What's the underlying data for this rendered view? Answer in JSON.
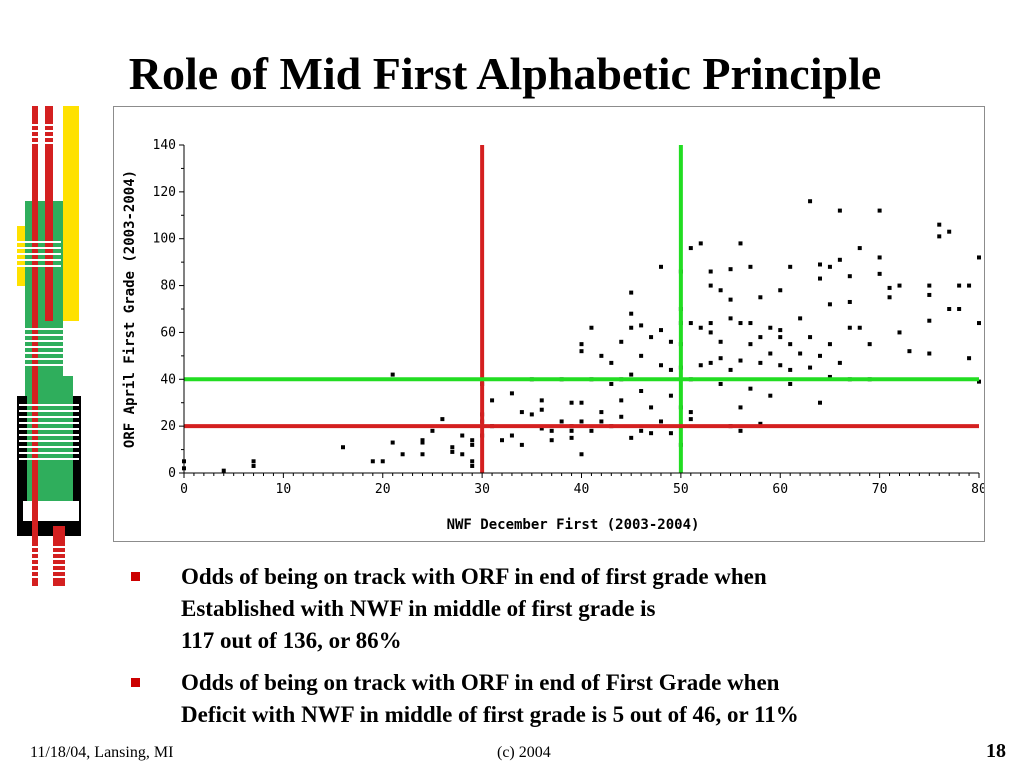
{
  "slide": {
    "title": "Role of Mid First Alphabetic Principle",
    "footer_left": "11/18/04, Lansing, MI",
    "footer_center": "(c) 2004",
    "page_number": "18"
  },
  "bullets": [
    {
      "lines": [
        "Odds of being on track with ORF in end of first grade when",
        "Established with NWF in middle of first grade is",
        "117 out of 136, or 86%"
      ]
    },
    {
      "lines": [
        "Odds of being on track with ORF in end of First Grade when",
        "Deficit with NWF in middle of first grade is 5 out of 46, or 11%"
      ]
    }
  ],
  "colors": {
    "accent_red": "#cc0000",
    "chart_red": "#d42020",
    "chart_green": "#22dd22",
    "deco_yellow": "#ffe100",
    "deco_green": "#2fae5c",
    "deco_black": "#000000"
  },
  "chart_data": {
    "type": "scatter",
    "xlabel": "NWF December First (2003-2004)",
    "ylabel": "ORF April First Grade (2003-2004)",
    "xlim": [
      0,
      80
    ],
    "ylim": [
      0,
      140
    ],
    "xticks": [
      0,
      10,
      20,
      30,
      40,
      50,
      60,
      70,
      80
    ],
    "yticks": [
      0,
      20,
      40,
      60,
      80,
      100,
      120,
      140
    ],
    "reference_lines": [
      {
        "orientation": "vertical",
        "value": 30,
        "color": "#d42020"
      },
      {
        "orientation": "vertical",
        "value": 50,
        "color": "#22dd22"
      },
      {
        "orientation": "horizontal",
        "value": 20,
        "color": "#d42020"
      },
      {
        "orientation": "horizontal",
        "value": 40,
        "color": "#22dd22"
      }
    ],
    "points": [
      [
        0,
        2
      ],
      [
        0,
        5
      ],
      [
        4,
        1
      ],
      [
        7,
        3
      ],
      [
        7,
        5
      ],
      [
        16,
        11
      ],
      [
        19,
        5
      ],
      [
        20,
        5
      ],
      [
        21,
        42
      ],
      [
        21,
        13
      ],
      [
        22,
        8
      ],
      [
        24,
        14
      ],
      [
        24,
        13
      ],
      [
        24,
        8
      ],
      [
        25,
        18
      ],
      [
        26,
        23
      ],
      [
        27,
        9
      ],
      [
        27,
        11
      ],
      [
        28,
        8
      ],
      [
        28,
        16
      ],
      [
        29,
        14
      ],
      [
        29,
        5
      ],
      [
        29,
        12
      ],
      [
        29,
        3
      ],
      [
        30,
        25
      ],
      [
        30,
        22
      ],
      [
        30,
        16
      ],
      [
        30,
        38
      ],
      [
        31,
        20
      ],
      [
        31,
        31
      ],
      [
        32,
        14
      ],
      [
        33,
        34
      ],
      [
        33,
        16
      ],
      [
        34,
        12
      ],
      [
        34,
        26
      ],
      [
        35,
        25
      ],
      [
        35,
        40
      ],
      [
        36,
        27
      ],
      [
        36,
        19
      ],
      [
        36,
        31
      ],
      [
        37,
        14
      ],
      [
        37,
        18
      ],
      [
        38,
        22
      ],
      [
        38,
        40
      ],
      [
        39,
        30
      ],
      [
        39,
        20
      ],
      [
        39,
        18
      ],
      [
        39,
        15
      ],
      [
        40,
        8
      ],
      [
        40,
        22
      ],
      [
        40,
        30
      ],
      [
        40,
        52
      ],
      [
        40,
        55
      ],
      [
        41,
        62
      ],
      [
        41,
        40
      ],
      [
        41,
        18
      ],
      [
        42,
        22
      ],
      [
        42,
        50
      ],
      [
        42,
        26
      ],
      [
        43,
        20
      ],
      [
        43,
        38
      ],
      [
        43,
        47
      ],
      [
        44,
        40
      ],
      [
        44,
        24
      ],
      [
        44,
        31
      ],
      [
        44,
        56
      ],
      [
        45,
        42
      ],
      [
        45,
        15
      ],
      [
        45,
        68
      ],
      [
        45,
        77
      ],
      [
        45,
        62
      ],
      [
        46,
        18
      ],
      [
        46,
        35
      ],
      [
        46,
        50
      ],
      [
        46,
        63
      ],
      [
        47,
        17
      ],
      [
        47,
        28
      ],
      [
        47,
        58
      ],
      [
        48,
        61
      ],
      [
        48,
        46
      ],
      [
        48,
        22
      ],
      [
        48,
        88
      ],
      [
        49,
        17
      ],
      [
        49,
        56
      ],
      [
        49,
        44
      ],
      [
        49,
        33
      ],
      [
        50,
        12
      ],
      [
        50,
        28
      ],
      [
        50,
        45
      ],
      [
        50,
        64
      ],
      [
        50,
        70
      ],
      [
        50,
        86
      ],
      [
        50,
        55
      ],
      [
        51,
        96
      ],
      [
        51,
        64
      ],
      [
        51,
        40
      ],
      [
        51,
        23
      ],
      [
        51,
        26
      ],
      [
        52,
        98
      ],
      [
        52,
        46
      ],
      [
        52,
        62
      ],
      [
        53,
        60
      ],
      [
        53,
        47
      ],
      [
        53,
        64
      ],
      [
        53,
        80
      ],
      [
        53,
        86
      ],
      [
        54,
        38
      ],
      [
        54,
        49
      ],
      [
        54,
        56
      ],
      [
        54,
        78
      ],
      [
        55,
        20
      ],
      [
        55,
        44
      ],
      [
        55,
        66
      ],
      [
        55,
        74
      ],
      [
        55,
        87
      ],
      [
        56,
        18
      ],
      [
        56,
        28
      ],
      [
        56,
        48
      ],
      [
        56,
        64
      ],
      [
        56,
        98
      ],
      [
        57,
        36
      ],
      [
        57,
        55
      ],
      [
        57,
        64
      ],
      [
        57,
        88
      ],
      [
        58,
        58
      ],
      [
        58,
        47
      ],
      [
        58,
        75
      ],
      [
        58,
        21
      ],
      [
        59,
        33
      ],
      [
        59,
        51
      ],
      [
        59,
        62
      ],
      [
        60,
        61
      ],
      [
        60,
        46
      ],
      [
        60,
        58
      ],
      [
        60,
        78
      ],
      [
        61,
        88
      ],
      [
        61,
        44
      ],
      [
        61,
        38
      ],
      [
        61,
        55
      ],
      [
        62,
        51
      ],
      [
        62,
        66
      ],
      [
        63,
        45
      ],
      [
        63,
        58
      ],
      [
        64,
        30
      ],
      [
        64,
        50
      ],
      [
        64,
        83
      ],
      [
        64,
        89
      ],
      [
        65,
        41
      ],
      [
        65,
        88
      ],
      [
        65,
        72
      ],
      [
        65,
        55
      ],
      [
        66,
        91
      ],
      [
        66,
        47
      ],
      [
        67,
        40
      ],
      [
        67,
        84
      ],
      [
        67,
        62
      ],
      [
        68,
        62
      ],
      [
        68,
        96
      ],
      [
        69,
        55
      ],
      [
        69,
        40
      ],
      [
        70,
        112
      ],
      [
        70,
        92
      ],
      [
        70,
        85
      ],
      [
        71,
        75
      ],
      [
        71,
        79
      ],
      [
        72,
        60
      ],
      [
        72,
        80
      ],
      [
        73,
        52
      ],
      [
        75,
        51
      ],
      [
        75,
        65
      ],
      [
        75,
        76
      ],
      [
        75,
        80
      ],
      [
        76,
        106
      ],
      [
        76,
        101
      ],
      [
        77,
        103
      ],
      [
        77,
        70
      ],
      [
        78,
        70
      ],
      [
        78,
        80
      ],
      [
        79,
        49
      ],
      [
        79,
        80
      ],
      [
        80,
        92
      ],
      [
        80,
        64
      ],
      [
        80,
        39
      ],
      [
        63,
        116
      ],
      [
        66,
        112
      ],
      [
        67,
        73
      ]
    ]
  }
}
